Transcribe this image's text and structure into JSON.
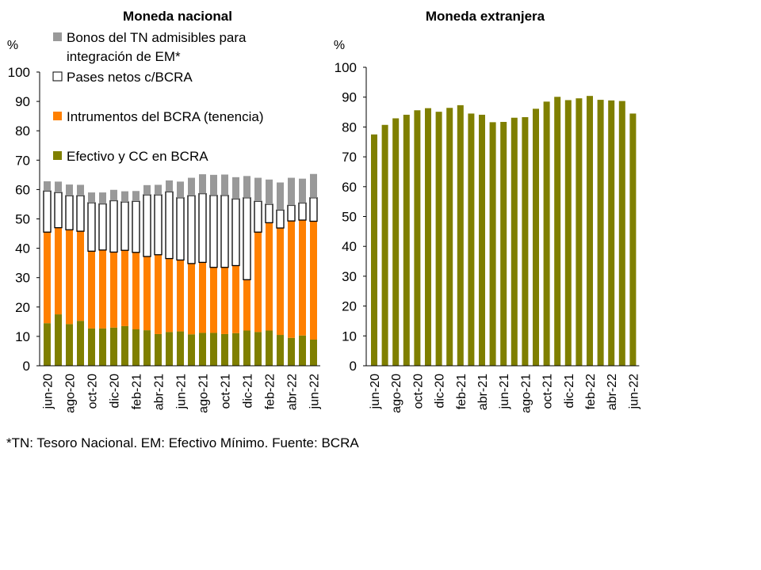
{
  "chart_data": [
    {
      "type": "bar",
      "stacked": true,
      "title": "Moneda nacional",
      "ylabel": "%",
      "ylim": [
        0,
        100
      ],
      "yticks": [
        0,
        10,
        20,
        30,
        40,
        50,
        60,
        70,
        80,
        90,
        100
      ],
      "categories": [
        "jun-20",
        "jul-20",
        "ago-20",
        "sep-20",
        "oct-20",
        "nov-20",
        "dic-20",
        "ene-21",
        "feb-21",
        "mar-21",
        "abr-21",
        "may-21",
        "jun-21",
        "jul-21",
        "ago-21",
        "sep-21",
        "oct-21",
        "nov-21",
        "dic-21",
        "ene-22",
        "feb-22",
        "mar-22",
        "abr-22",
        "may-22",
        "jun-22"
      ],
      "xticklabels": [
        "jun-20",
        "ago-20",
        "oct-20",
        "dic-20",
        "feb-21",
        "abr-21",
        "jun-21",
        "ago-21",
        "oct-21",
        "dic-21",
        "feb-22",
        "abr-22",
        "jun-22"
      ],
      "series": [
        {
          "name": "Efectivo y CC en BCRA",
          "color": "#7f7f00",
          "values": [
            14.5,
            17.5,
            14.2,
            15.3,
            12.7,
            12.7,
            13,
            13.5,
            12.4,
            12.1,
            10.8,
            11.5,
            11.7,
            10.7,
            11.2,
            11.2,
            10.8,
            11.1,
            12,
            11.5,
            12,
            10.5,
            9.5,
            10.3,
            8.9
          ]
        },
        {
          "name": "Intrumentos del BCRA (tenencia)",
          "color": "#ff8000",
          "values": [
            31,
            29.5,
            32.1,
            30.5,
            26.3,
            26.7,
            25.7,
            25.8,
            26.2,
            25.1,
            27,
            25,
            24.3,
            24.1,
            24,
            22.3,
            22.7,
            23,
            17.3,
            34,
            36.7,
            36.4,
            39.8,
            39.3,
            40.3
          ]
        },
        {
          "name": "Pases netos c/BCRA",
          "color": "#ffffff",
          "values": [
            14,
            12,
            11.6,
            12.1,
            16.5,
            15.7,
            17.5,
            16.5,
            17.4,
            21,
            20.4,
            22.7,
            21.2,
            23.1,
            23.4,
            24.5,
            24.5,
            22.7,
            27.9,
            10.5,
            6.3,
            6.1,
            5.3,
            5.8,
            8
          ]
        },
        {
          "name": "Bonos del TN admisibles para integración de EM*",
          "color": "#999999",
          "values": [
            3.3,
            3.7,
            3.8,
            3.7,
            3.5,
            3.9,
            3.7,
            3.6,
            3.5,
            3.3,
            3.4,
            3.9,
            5.5,
            6.1,
            6.6,
            7,
            7.1,
            7.4,
            7.4,
            8,
            8.4,
            9.4,
            9.4,
            8.3,
            8.1
          ]
        }
      ]
    },
    {
      "type": "bar",
      "title": "Moneda extranjera",
      "ylabel": "%",
      "ylim": [
        0,
        100
      ],
      "yticks": [
        0,
        10,
        20,
        30,
        40,
        50,
        60,
        70,
        80,
        90,
        100
      ],
      "categories": [
        "jun-20",
        "jul-20",
        "ago-20",
        "sep-20",
        "oct-20",
        "nov-20",
        "dic-20",
        "ene-21",
        "feb-21",
        "mar-21",
        "abr-21",
        "may-21",
        "jun-21",
        "jul-21",
        "ago-21",
        "sep-21",
        "oct-21",
        "nov-21",
        "dic-21",
        "ene-22",
        "feb-22",
        "mar-22",
        "abr-22",
        "may-22",
        "jun-22"
      ],
      "xticklabels": [
        "jun-20",
        "ago-20",
        "oct-20",
        "dic-20",
        "feb-21",
        "abr-21",
        "jun-21",
        "ago-21",
        "oct-21",
        "dic-21",
        "feb-22",
        "abr-22",
        "jun-22"
      ],
      "series": [
        {
          "name": "Moneda extranjera",
          "color": "#7f7f00",
          "values": [
            77.5,
            80.7,
            82.9,
            84.1,
            85.6,
            86.3,
            85.1,
            86.4,
            87.3,
            84.5,
            84.1,
            81.6,
            81.7,
            83.1,
            83.3,
            86.1,
            88.5,
            90.1,
            89,
            89.6,
            90.4,
            89.1,
            88.9,
            88.7,
            84.5
          ]
        }
      ]
    }
  ],
  "footnote": "*TN: Tesoro Nacional. EM: Efectivo Mínimo. Fuente: BCRA"
}
